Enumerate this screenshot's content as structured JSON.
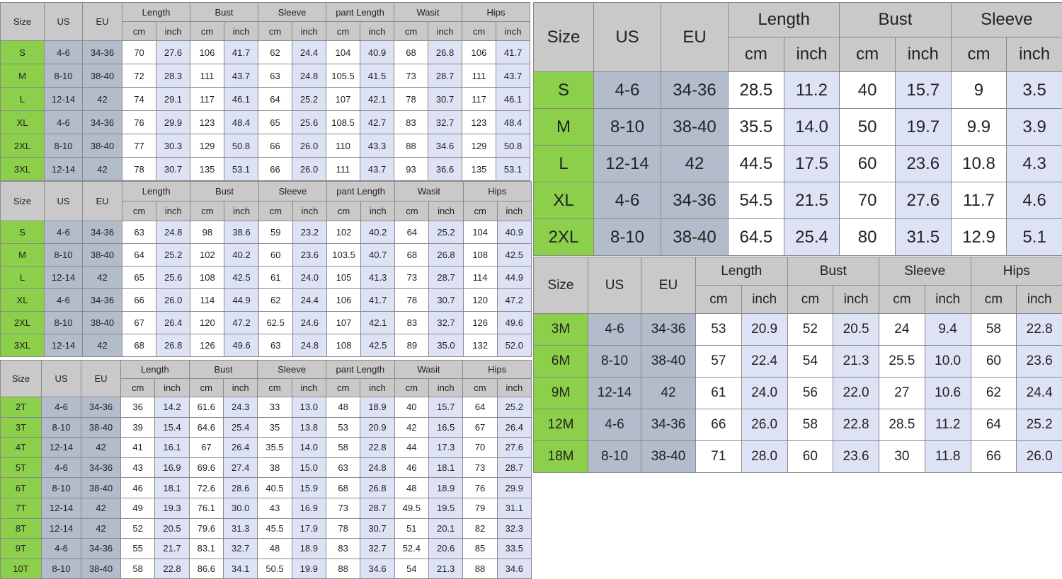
{
  "colors": {
    "header": "#c9c9c9",
    "size_column": "#8ccf4a",
    "us_eu_columns": "#b3bccb",
    "inch_columns": "#dde3f5",
    "cm_columns": "#ffffff"
  },
  "tables": [
    {
      "headers": [
        "Size",
        "US",
        "EU"
      ],
      "groups": [
        "Length",
        "Bust",
        "Sleeve",
        "pant Length",
        "Wasit",
        "Hips"
      ],
      "units": [
        "cm",
        "inch"
      ],
      "rows": [
        [
          "S",
          "4-6",
          "34-36",
          "70",
          "27.6",
          "106",
          "41.7",
          "62",
          "24.4",
          "104",
          "40.9",
          "68",
          "26.8",
          "106",
          "41.7"
        ],
        [
          "M",
          "8-10",
          "38-40",
          "72",
          "28.3",
          "111",
          "43.7",
          "63",
          "24.8",
          "105.5",
          "41.5",
          "73",
          "28.7",
          "111",
          "43.7"
        ],
        [
          "L",
          "12-14",
          "42",
          "74",
          "29.1",
          "117",
          "46.1",
          "64",
          "25.2",
          "107",
          "42.1",
          "78",
          "30.7",
          "117",
          "46.1"
        ],
        [
          "XL",
          "4-6",
          "34-36",
          "76",
          "29.9",
          "123",
          "48.4",
          "65",
          "25.6",
          "108.5",
          "42.7",
          "83",
          "32.7",
          "123",
          "48.4"
        ],
        [
          "2XL",
          "8-10",
          "38-40",
          "77",
          "30.3",
          "129",
          "50.8",
          "66",
          "26.0",
          "110",
          "43.3",
          "88",
          "34.6",
          "129",
          "50.8"
        ],
        [
          "3XL",
          "12-14",
          "42",
          "78",
          "30.7",
          "135",
          "53.1",
          "66",
          "26.0",
          "111",
          "43.7",
          "93",
          "36.6",
          "135",
          "53.1"
        ]
      ]
    },
    {
      "headers": [
        "Size",
        "US",
        "EU"
      ],
      "groups": [
        "Length",
        "Bust",
        "Sleeve",
        "pant Length",
        "Wasit",
        "Hips"
      ],
      "units": [
        "cm",
        "inch"
      ],
      "rows": [
        [
          "S",
          "4-6",
          "34-36",
          "63",
          "24.8",
          "98",
          "38.6",
          "59",
          "23.2",
          "102",
          "40.2",
          "64",
          "25.2",
          "104",
          "40.9"
        ],
        [
          "M",
          "8-10",
          "38-40",
          "64",
          "25.2",
          "102",
          "40.2",
          "60",
          "23.6",
          "103.5",
          "40.7",
          "68",
          "26.8",
          "108",
          "42.5"
        ],
        [
          "L",
          "12-14",
          "42",
          "65",
          "25.6",
          "108",
          "42.5",
          "61",
          "24.0",
          "105",
          "41.3",
          "73",
          "28.7",
          "114",
          "44.9"
        ],
        [
          "XL",
          "4-6",
          "34-36",
          "66",
          "26.0",
          "114",
          "44.9",
          "62",
          "24.4",
          "106",
          "41.7",
          "78",
          "30.7",
          "120",
          "47.2"
        ],
        [
          "2XL",
          "8-10",
          "38-40",
          "67",
          "26.4",
          "120",
          "47.2",
          "62.5",
          "24.6",
          "107",
          "42.1",
          "83",
          "32.7",
          "126",
          "49.6"
        ],
        [
          "3XL",
          "12-14",
          "42",
          "68",
          "26.8",
          "126",
          "49.6",
          "63",
          "24.8",
          "108",
          "42.5",
          "89",
          "35.0",
          "132",
          "52.0"
        ]
      ]
    },
    {
      "headers": [
        "Size",
        "US",
        "EU"
      ],
      "groups": [
        "Length",
        "Bust",
        "Sleeve",
        "pant Length",
        "Wasit",
        "Hips"
      ],
      "units": [
        "cm",
        "inch"
      ],
      "rows": [
        [
          "2T",
          "4-6",
          "34-36",
          "36",
          "14.2",
          "61.6",
          "24.3",
          "33",
          "13.0",
          "48",
          "18.9",
          "40",
          "15.7",
          "64",
          "25.2"
        ],
        [
          "3T",
          "8-10",
          "38-40",
          "39",
          "15.4",
          "64.6",
          "25.4",
          "35",
          "13.8",
          "53",
          "20.9",
          "42",
          "16.5",
          "67",
          "26.4"
        ],
        [
          "4T",
          "12-14",
          "42",
          "41",
          "16.1",
          "67",
          "26.4",
          "35.5",
          "14.0",
          "58",
          "22.8",
          "44",
          "17.3",
          "70",
          "27.6"
        ],
        [
          "5T",
          "4-6",
          "34-36",
          "43",
          "16.9",
          "69.6",
          "27.4",
          "38",
          "15.0",
          "63",
          "24.8",
          "46",
          "18.1",
          "73",
          "28.7"
        ],
        [
          "6T",
          "8-10",
          "38-40",
          "46",
          "18.1",
          "72.6",
          "28.6",
          "40.5",
          "15.9",
          "68",
          "26.8",
          "48",
          "18.9",
          "76",
          "29.9"
        ],
        [
          "7T",
          "12-14",
          "42",
          "49",
          "19.3",
          "76.1",
          "30.0",
          "43",
          "16.9",
          "73",
          "28.7",
          "49.5",
          "19.5",
          "79",
          "31.1"
        ],
        [
          "8T",
          "12-14",
          "42",
          "52",
          "20.5",
          "79.6",
          "31.3",
          "45.5",
          "17.9",
          "78",
          "30.7",
          "51",
          "20.1",
          "82",
          "32.3"
        ],
        [
          "9T",
          "4-6",
          "34-36",
          "55",
          "21.7",
          "83.1",
          "32.7",
          "48",
          "18.9",
          "83",
          "32.7",
          "52.4",
          "20.6",
          "85",
          "33.5"
        ],
        [
          "10T",
          "8-10",
          "38-40",
          "58",
          "22.8",
          "86.6",
          "34.1",
          "50.5",
          "19.9",
          "88",
          "34.6",
          "54",
          "21.3",
          "88",
          "34.6"
        ]
      ]
    },
    {
      "headers": [
        "Size",
        "US",
        "EU"
      ],
      "groups": [
        "Length",
        "Bust",
        "Sleeve"
      ],
      "units": [
        "cm",
        "inch"
      ],
      "rows": [
        [
          "S",
          "4-6",
          "34-36",
          "28.5",
          "11.2",
          "40",
          "15.7",
          "9",
          "3.5"
        ],
        [
          "M",
          "8-10",
          "38-40",
          "35.5",
          "14.0",
          "50",
          "19.7",
          "9.9",
          "3.9"
        ],
        [
          "L",
          "12-14",
          "42",
          "44.5",
          "17.5",
          "60",
          "23.6",
          "10.8",
          "4.3"
        ],
        [
          "XL",
          "4-6",
          "34-36",
          "54.5",
          "21.5",
          "70",
          "27.6",
          "11.7",
          "4.6"
        ],
        [
          "2XL",
          "8-10",
          "38-40",
          "64.5",
          "25.4",
          "80",
          "31.5",
          "12.9",
          "5.1"
        ]
      ]
    },
    {
      "headers": [
        "Size",
        "US",
        "EU"
      ],
      "groups": [
        "Length",
        "Bust",
        "Sleeve",
        "Hips"
      ],
      "units": [
        "cm",
        "inch"
      ],
      "rows": [
        [
          "3M",
          "4-6",
          "34-36",
          "53",
          "20.9",
          "52",
          "20.5",
          "24",
          "9.4",
          "58",
          "22.8"
        ],
        [
          "6M",
          "8-10",
          "38-40",
          "57",
          "22.4",
          "54",
          "21.3",
          "25.5",
          "10.0",
          "60",
          "23.6"
        ],
        [
          "9M",
          "12-14",
          "42",
          "61",
          "24.0",
          "56",
          "22.0",
          "27",
          "10.6",
          "62",
          "24.4"
        ],
        [
          "12M",
          "4-6",
          "34-36",
          "66",
          "26.0",
          "58",
          "22.8",
          "28.5",
          "11.2",
          "64",
          "25.2"
        ],
        [
          "18M",
          "8-10",
          "38-40",
          "71",
          "28.0",
          "60",
          "23.6",
          "30",
          "11.8",
          "66",
          "26.0"
        ]
      ]
    }
  ]
}
